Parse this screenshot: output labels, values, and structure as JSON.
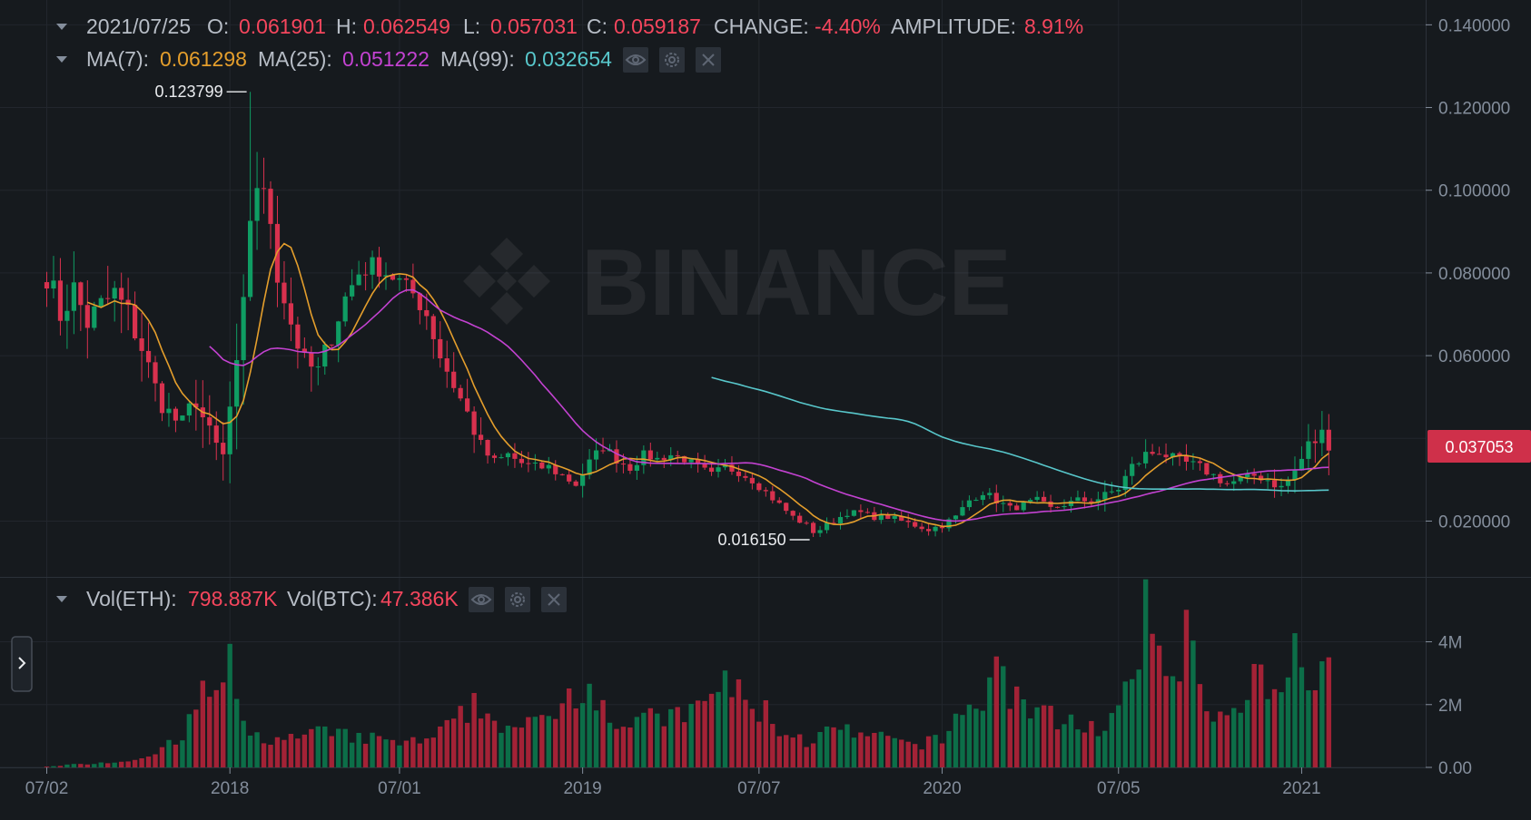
{
  "legend": {
    "ohlc": {
      "date": "2021/07/25",
      "o_label": "O:",
      "o_value": "0.061901",
      "h_label": "H:",
      "h_value": "0.062549",
      "l_label": "L:",
      "l_value": "0.057031",
      "c_label": "C:",
      "c_value": "0.059187",
      "change_label": "CHANGE:",
      "change_value": "-4.40%",
      "amplitude_label": "AMPLITUDE:",
      "amplitude_value": "8.91%"
    },
    "ma": {
      "ma7_label": "MA(7):",
      "ma7_value": "0.061298",
      "ma25_label": "MA(25):",
      "ma25_value": "0.051222",
      "ma99_label": "MA(99):",
      "ma99_value": "0.032654"
    },
    "vol": {
      "eth_label": "Vol(ETH):",
      "eth_value": "798.887K",
      "btc_label": "Vol(BTC):",
      "btc_value": "47.386K"
    }
  },
  "watermark": "BINANCE",
  "colors": {
    "background": "#161a1e",
    "grid": "#22262d",
    "axis_text": "#848e9c",
    "legend_label": "#b7bdc6",
    "up": "#0ecb81",
    "down": "#f6465d",
    "up_candle": "#0f9d63",
    "down_candle": "#d8314e",
    "up_vol": "#0c6e48",
    "down_vol": "#a32236",
    "ma7": "#e49e2c",
    "ma25": "#c342d1",
    "ma99": "#58c7cb",
    "last_price_bg": "#cf304a"
  },
  "icons": [
    "chevron-down-icon",
    "eye-icon",
    "gear-icon",
    "close-icon",
    "chevron-right-icon"
  ],
  "chart_data": {
    "type": "candlestick",
    "price_axis": {
      "ticks": [
        "0.140000",
        "0.120000",
        "0.100000",
        "0.080000",
        "0.060000",
        "0.020000"
      ],
      "tick_values": [
        0.14,
        0.12,
        0.1,
        0.08,
        0.06,
        0.02
      ],
      "range": [
        0.0065,
        0.146
      ]
    },
    "volume_axis": {
      "ticks": [
        "4M",
        "2M",
        "0.00"
      ],
      "tick_values": [
        4000000,
        2000000,
        0
      ],
      "range": [
        0,
        5200000
      ]
    },
    "x_axis": {
      "labels": [
        "07/02",
        "2018",
        "07/01",
        "2019",
        "07/07",
        "2020",
        "07/05",
        "2021"
      ],
      "label_index": [
        0,
        27,
        52,
        79,
        105,
        132,
        158,
        185
      ]
    },
    "last_price": {
      "value": 0.037053,
      "label": "0.037053"
    },
    "annotations": [
      {
        "label": "0.123799",
        "value": 0.123799,
        "index": 30
      },
      {
        "label": "0.016150",
        "value": 0.01615,
        "index": 113
      }
    ],
    "series": [
      {
        "name": "MA(7)",
        "key": "ma7",
        "period": 7
      },
      {
        "name": "MA(25)",
        "key": "ma25",
        "period": 25
      },
      {
        "name": "MA(99)",
        "key": "ma99",
        "period": 99
      }
    ],
    "anchors": {
      "close": [
        [
          0,
          0.08
        ],
        [
          2,
          0.07
        ],
        [
          4,
          0.076
        ],
        [
          6,
          0.068
        ],
        [
          8,
          0.072
        ],
        [
          10,
          0.075
        ],
        [
          12,
          0.07
        ],
        [
          14,
          0.062
        ],
        [
          16,
          0.052
        ],
        [
          18,
          0.046
        ],
        [
          20,
          0.043
        ],
        [
          22,
          0.05
        ],
        [
          24,
          0.04
        ],
        [
          26,
          0.035
        ],
        [
          27,
          0.047
        ],
        [
          28,
          0.055
        ],
        [
          29,
          0.07
        ],
        [
          30,
          0.094
        ],
        [
          31,
          0.102
        ],
        [
          32,
          0.098
        ],
        [
          33,
          0.093
        ],
        [
          34,
          0.08
        ],
        [
          35,
          0.074
        ],
        [
          36,
          0.068
        ],
        [
          38,
          0.058
        ],
        [
          40,
          0.056
        ],
        [
          42,
          0.065
        ],
        [
          44,
          0.074
        ],
        [
          46,
          0.08
        ],
        [
          48,
          0.082
        ],
        [
          50,
          0.08
        ],
        [
          52,
          0.078
        ],
        [
          54,
          0.075
        ],
        [
          56,
          0.07
        ],
        [
          58,
          0.06
        ],
        [
          60,
          0.053
        ],
        [
          62,
          0.046
        ],
        [
          64,
          0.038
        ],
        [
          66,
          0.034
        ],
        [
          68,
          0.036
        ],
        [
          70,
          0.034
        ],
        [
          72,
          0.033
        ],
        [
          74,
          0.033
        ],
        [
          76,
          0.031
        ],
        [
          78,
          0.029
        ],
        [
          80,
          0.034
        ],
        [
          82,
          0.038
        ],
        [
          84,
          0.035
        ],
        [
          86,
          0.033
        ],
        [
          88,
          0.036
        ],
        [
          90,
          0.035
        ],
        [
          92,
          0.036
        ],
        [
          94,
          0.035
        ],
        [
          96,
          0.033
        ],
        [
          98,
          0.031
        ],
        [
          100,
          0.033
        ],
        [
          102,
          0.032
        ],
        [
          104,
          0.03
        ],
        [
          106,
          0.027
        ],
        [
          108,
          0.024
        ],
        [
          110,
          0.021
        ],
        [
          112,
          0.019
        ],
        [
          113,
          0.0175
        ],
        [
          114,
          0.018
        ],
        [
          116,
          0.02
        ],
        [
          118,
          0.022
        ],
        [
          120,
          0.022
        ],
        [
          122,
          0.021
        ],
        [
          124,
          0.021
        ],
        [
          126,
          0.02
        ],
        [
          128,
          0.019
        ],
        [
          130,
          0.018
        ],
        [
          132,
          0.019
        ],
        [
          134,
          0.021
        ],
        [
          136,
          0.025
        ],
        [
          138,
          0.027
        ],
        [
          140,
          0.025
        ],
        [
          142,
          0.023
        ],
        [
          144,
          0.024
        ],
        [
          146,
          0.025
        ],
        [
          148,
          0.023
        ],
        [
          150,
          0.024
        ],
        [
          152,
          0.025
        ],
        [
          154,
          0.025
        ],
        [
          156,
          0.026
        ],
        [
          158,
          0.028
        ],
        [
          160,
          0.033
        ],
        [
          162,
          0.036
        ],
        [
          164,
          0.037
        ],
        [
          166,
          0.035
        ],
        [
          168,
          0.034
        ],
        [
          170,
          0.033
        ],
        [
          172,
          0.031
        ],
        [
          174,
          0.029
        ],
        [
          176,
          0.03
        ],
        [
          178,
          0.031
        ],
        [
          180,
          0.03
        ],
        [
          182,
          0.028
        ],
        [
          184,
          0.032
        ],
        [
          186,
          0.038
        ],
        [
          188,
          0.041
        ],
        [
          189,
          0.037
        ]
      ],
      "range": [
        [
          0,
          0.015
        ],
        [
          10,
          0.015
        ],
        [
          20,
          0.012
        ],
        [
          26,
          0.016
        ],
        [
          30,
          0.022
        ],
        [
          32,
          0.014
        ],
        [
          40,
          0.012
        ],
        [
          50,
          0.008
        ],
        [
          60,
          0.01
        ],
        [
          70,
          0.005
        ],
        [
          80,
          0.006
        ],
        [
          90,
          0.004
        ],
        [
          100,
          0.005
        ],
        [
          110,
          0.003
        ],
        [
          120,
          0.003
        ],
        [
          130,
          0.003
        ],
        [
          140,
          0.004
        ],
        [
          150,
          0.003
        ],
        [
          160,
          0.007
        ],
        [
          170,
          0.005
        ],
        [
          180,
          0.004
        ],
        [
          186,
          0.01
        ],
        [
          189,
          0.008
        ]
      ],
      "volume": [
        [
          0,
          30000
        ],
        [
          4,
          90000
        ],
        [
          8,
          150000
        ],
        [
          12,
          200000
        ],
        [
          16,
          500000
        ],
        [
          20,
          900000
        ],
        [
          23,
          2400000
        ],
        [
          26,
          2500000
        ],
        [
          27,
          3300000
        ],
        [
          29,
          1200000
        ],
        [
          32,
          900000
        ],
        [
          36,
          900000
        ],
        [
          40,
          1100000
        ],
        [
          44,
          1000000
        ],
        [
          48,
          900000
        ],
        [
          52,
          800000
        ],
        [
          56,
          800000
        ],
        [
          60,
          1400000
        ],
        [
          63,
          2000000
        ],
        [
          66,
          1500000
        ],
        [
          70,
          1200000
        ],
        [
          74,
          1600000
        ],
        [
          76,
          2200000
        ],
        [
          78,
          2500000
        ],
        [
          80,
          2800000
        ],
        [
          82,
          2000000
        ],
        [
          84,
          1400000
        ],
        [
          88,
          1500000
        ],
        [
          92,
          1600000
        ],
        [
          96,
          1800000
        ],
        [
          100,
          2800000
        ],
        [
          104,
          1800000
        ],
        [
          106,
          1800000
        ],
        [
          108,
          1200000
        ],
        [
          112,
          800000
        ],
        [
          116,
          1200000
        ],
        [
          120,
          1000000
        ],
        [
          124,
          900000
        ],
        [
          128,
          700000
        ],
        [
          132,
          900000
        ],
        [
          134,
          1500000
        ],
        [
          136,
          2200000
        ],
        [
          138,
          1800000
        ],
        [
          140,
          3600000
        ],
        [
          142,
          2400000
        ],
        [
          144,
          2000000
        ],
        [
          148,
          1600000
        ],
        [
          152,
          1500000
        ],
        [
          156,
          1100000
        ],
        [
          158,
          1800000
        ],
        [
          160,
          2600000
        ],
        [
          162,
          4800000
        ],
        [
          164,
          3800000
        ],
        [
          166,
          3000000
        ],
        [
          168,
          4200000
        ],
        [
          170,
          2700000
        ],
        [
          172,
          1800000
        ],
        [
          174,
          1500000
        ],
        [
          176,
          1700000
        ],
        [
          178,
          2800000
        ],
        [
          180,
          2500000
        ],
        [
          182,
          2000000
        ],
        [
          184,
          3900000
        ],
        [
          186,
          3200000
        ],
        [
          188,
          3300000
        ],
        [
          189,
          2900000
        ]
      ]
    }
  }
}
